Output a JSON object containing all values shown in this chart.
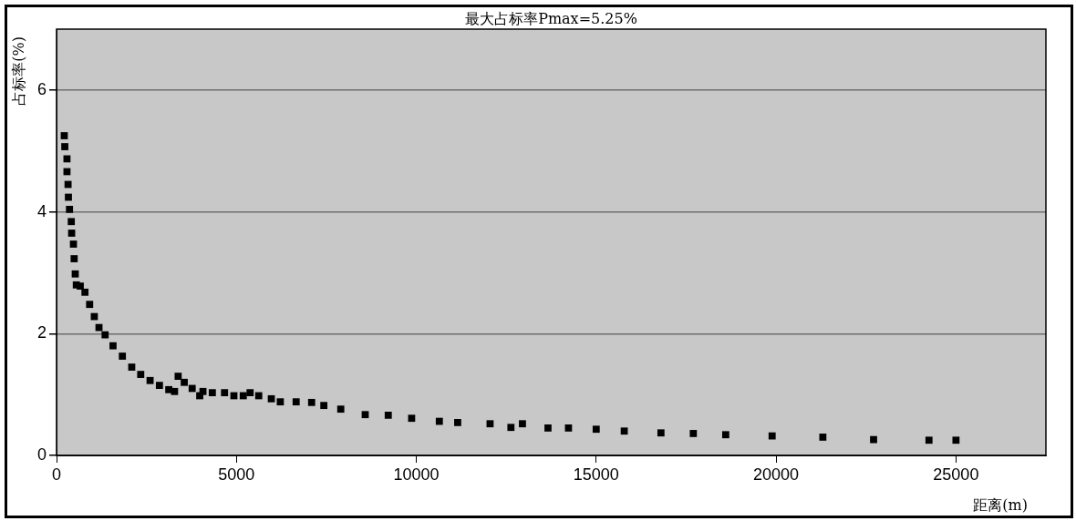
{
  "chart_data": {
    "type": "scatter",
    "title": "最大占标率Pmax=5.25%",
    "xlabel": "距离(m)",
    "ylabel": "占标率(%)",
    "xlim": [
      0,
      27500
    ],
    "xticks": [
      0,
      5000,
      10000,
      15000,
      20000,
      25000
    ],
    "ylim": [
      0,
      7
    ],
    "yticks": [
      0,
      2,
      4,
      6
    ],
    "grid": "y",
    "marker": "square",
    "series": [
      {
        "color": "#000000",
        "x": [
          215,
          230,
          290,
          290,
          320,
          330,
          360,
          410,
          420,
          470,
          490,
          520,
          550,
          660,
          790,
          920,
          1050,
          1180,
          1350,
          1570,
          1830,
          2090,
          2340,
          2600,
          2860,
          3120,
          3280,
          3380,
          3550,
          3770,
          3980,
          4070,
          4330,
          4670,
          4930,
          5190,
          5380,
          5620,
          5970,
          6220,
          6660,
          7090,
          7430,
          7900,
          8580,
          9220,
          9870,
          10640,
          11150,
          12050,
          12630,
          12950,
          13660,
          14230,
          15000,
          15780,
          16800,
          17700,
          18600,
          19890,
          21300,
          22710,
          24250,
          25000
        ],
        "values": [
          5.25,
          5.07,
          4.87,
          4.66,
          4.45,
          4.24,
          4.04,
          3.84,
          3.65,
          3.47,
          3.23,
          2.98,
          2.8,
          2.78,
          2.68,
          2.48,
          2.28,
          2.1,
          1.98,
          1.8,
          1.63,
          1.45,
          1.33,
          1.23,
          1.15,
          1.08,
          1.05,
          1.3,
          1.2,
          1.1,
          0.98,
          1.05,
          1.03,
          1.03,
          0.98,
          0.98,
          1.03,
          0.98,
          0.93,
          0.88,
          0.88,
          0.87,
          0.82,
          0.76,
          0.67,
          0.66,
          0.61,
          0.56,
          0.54,
          0.52,
          0.46,
          0.52,
          0.45,
          0.45,
          0.43,
          0.4,
          0.37,
          0.36,
          0.34,
          0.32,
          0.3,
          0.26,
          0.25,
          0.25
        ]
      }
    ]
  }
}
